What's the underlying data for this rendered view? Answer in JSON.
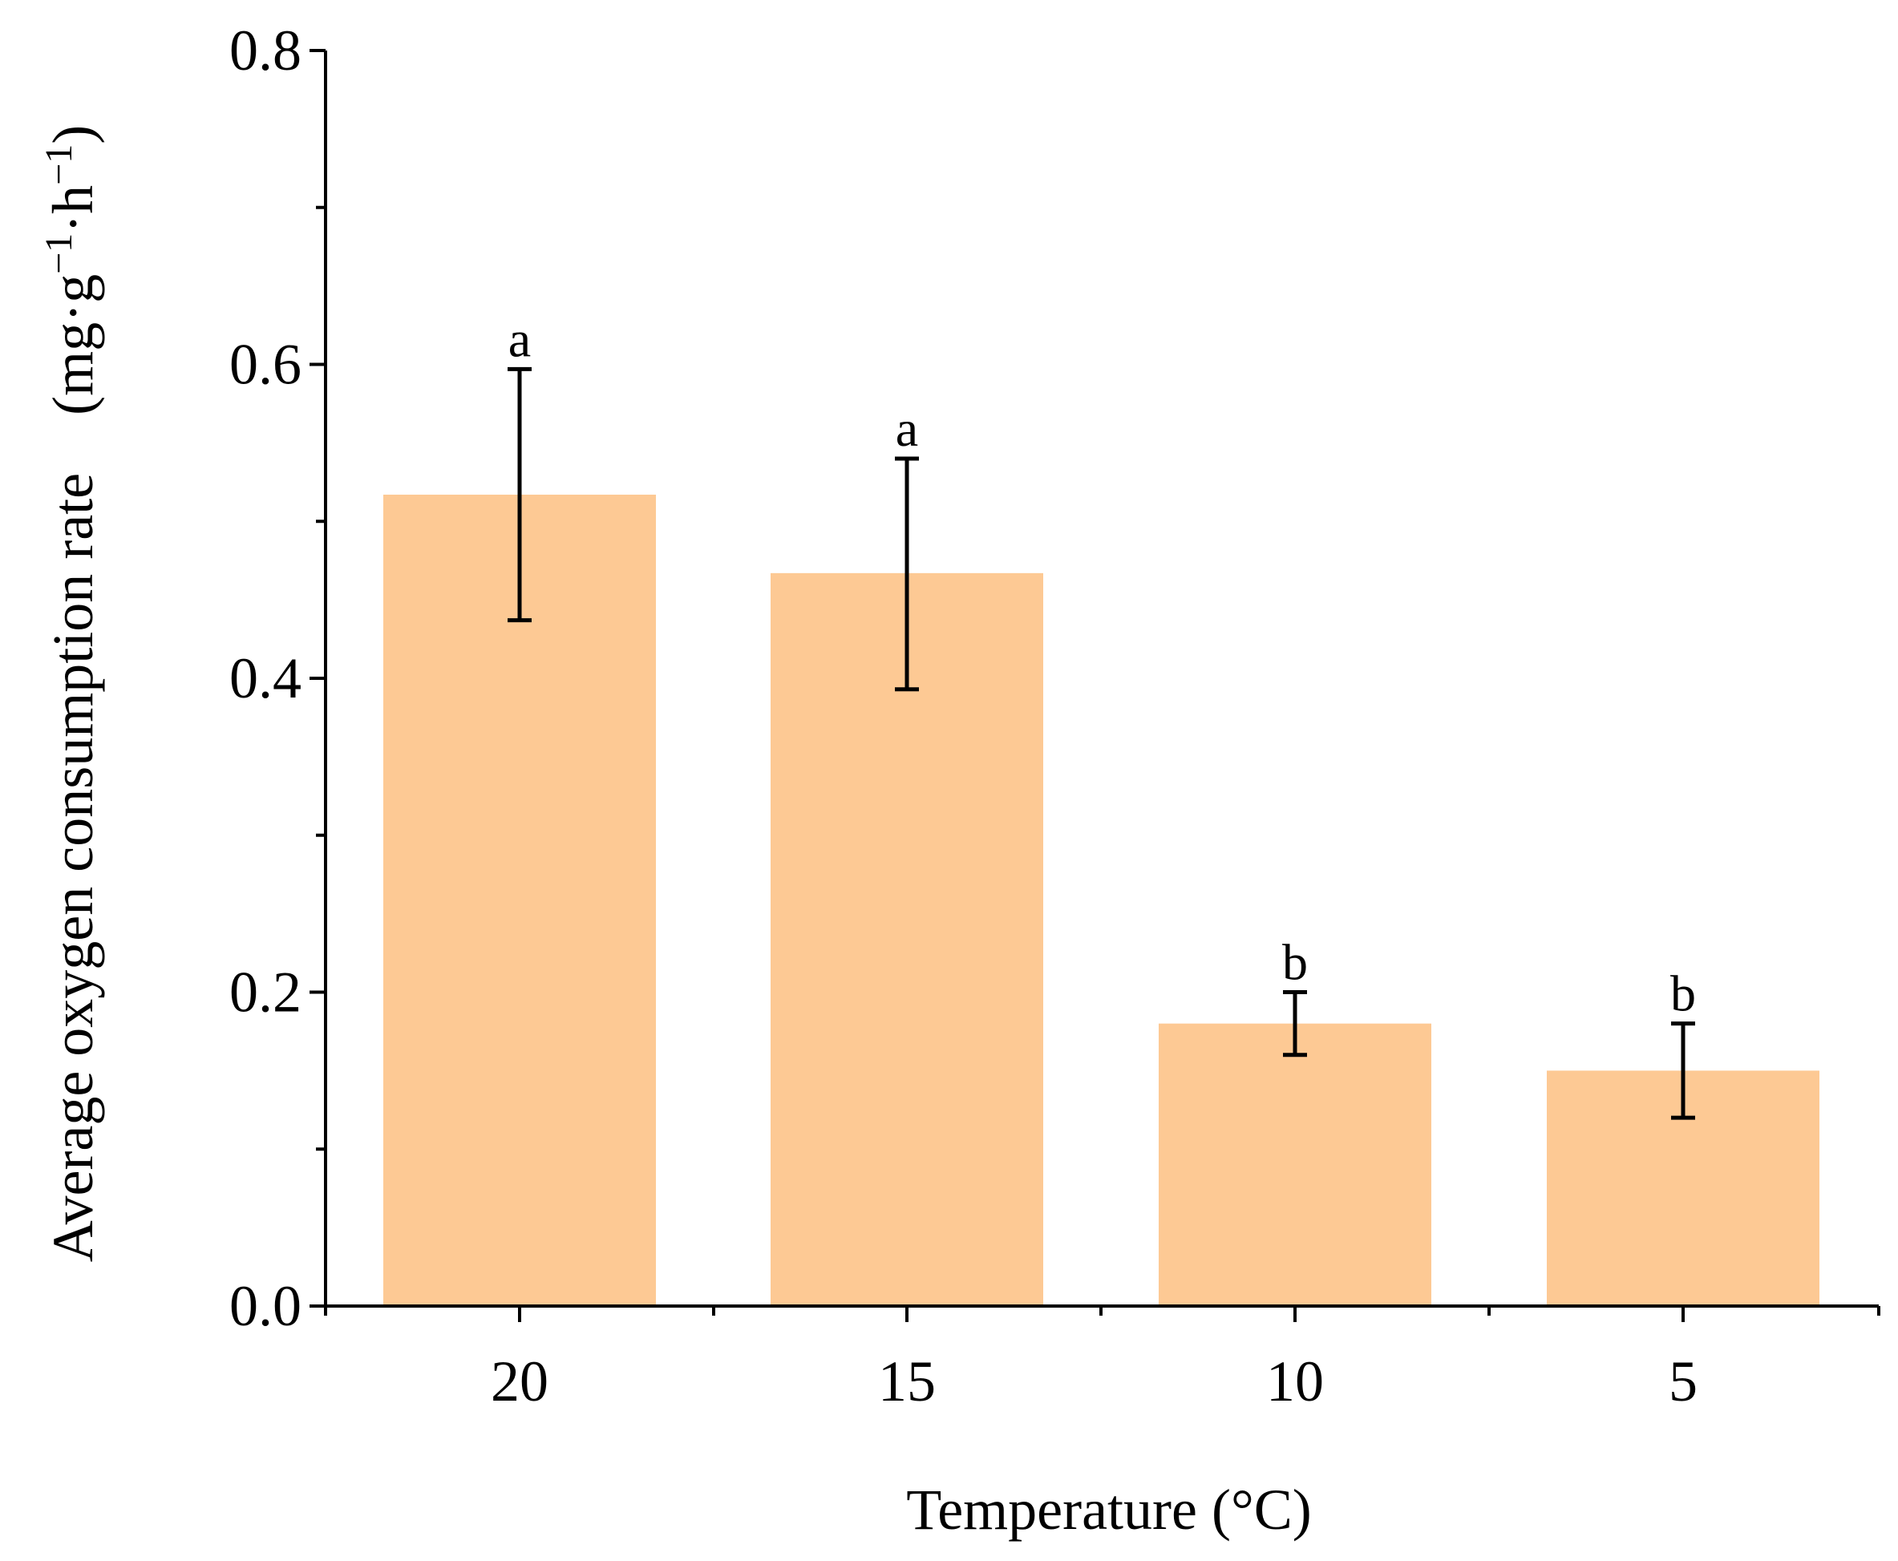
{
  "chart_data": {
    "type": "bar",
    "title": "",
    "xlabel": "Temperature (°C)",
    "ylabel_text": "Average oxygen consumption rate　(mg·g",
    "ylabel_sup1": "−1",
    "ylabel_mid": "·h",
    "ylabel_sup2": "−1",
    "ylabel_close": ")",
    "categories": [
      "20",
      "15",
      "10",
      "5"
    ],
    "values": [
      0.517,
      0.467,
      0.18,
      0.15
    ],
    "error_low": [
      0.437,
      0.393,
      0.16,
      0.12
    ],
    "error_high": [
      0.597,
      0.54,
      0.2,
      0.18
    ],
    "significance": [
      "a",
      "a",
      "b",
      "b"
    ],
    "ylim": [
      0,
      0.8
    ],
    "yticks": [
      0.0,
      0.2,
      0.4,
      0.6,
      0.8
    ],
    "ytick_labels": [
      "0.0",
      "0.2",
      "0.4",
      "0.6",
      "0.8"
    ],
    "yminor_ticks": [
      0.1,
      0.3,
      0.5,
      0.7
    ],
    "bar_color": "#fdc994",
    "grid": false,
    "legend": "none"
  }
}
